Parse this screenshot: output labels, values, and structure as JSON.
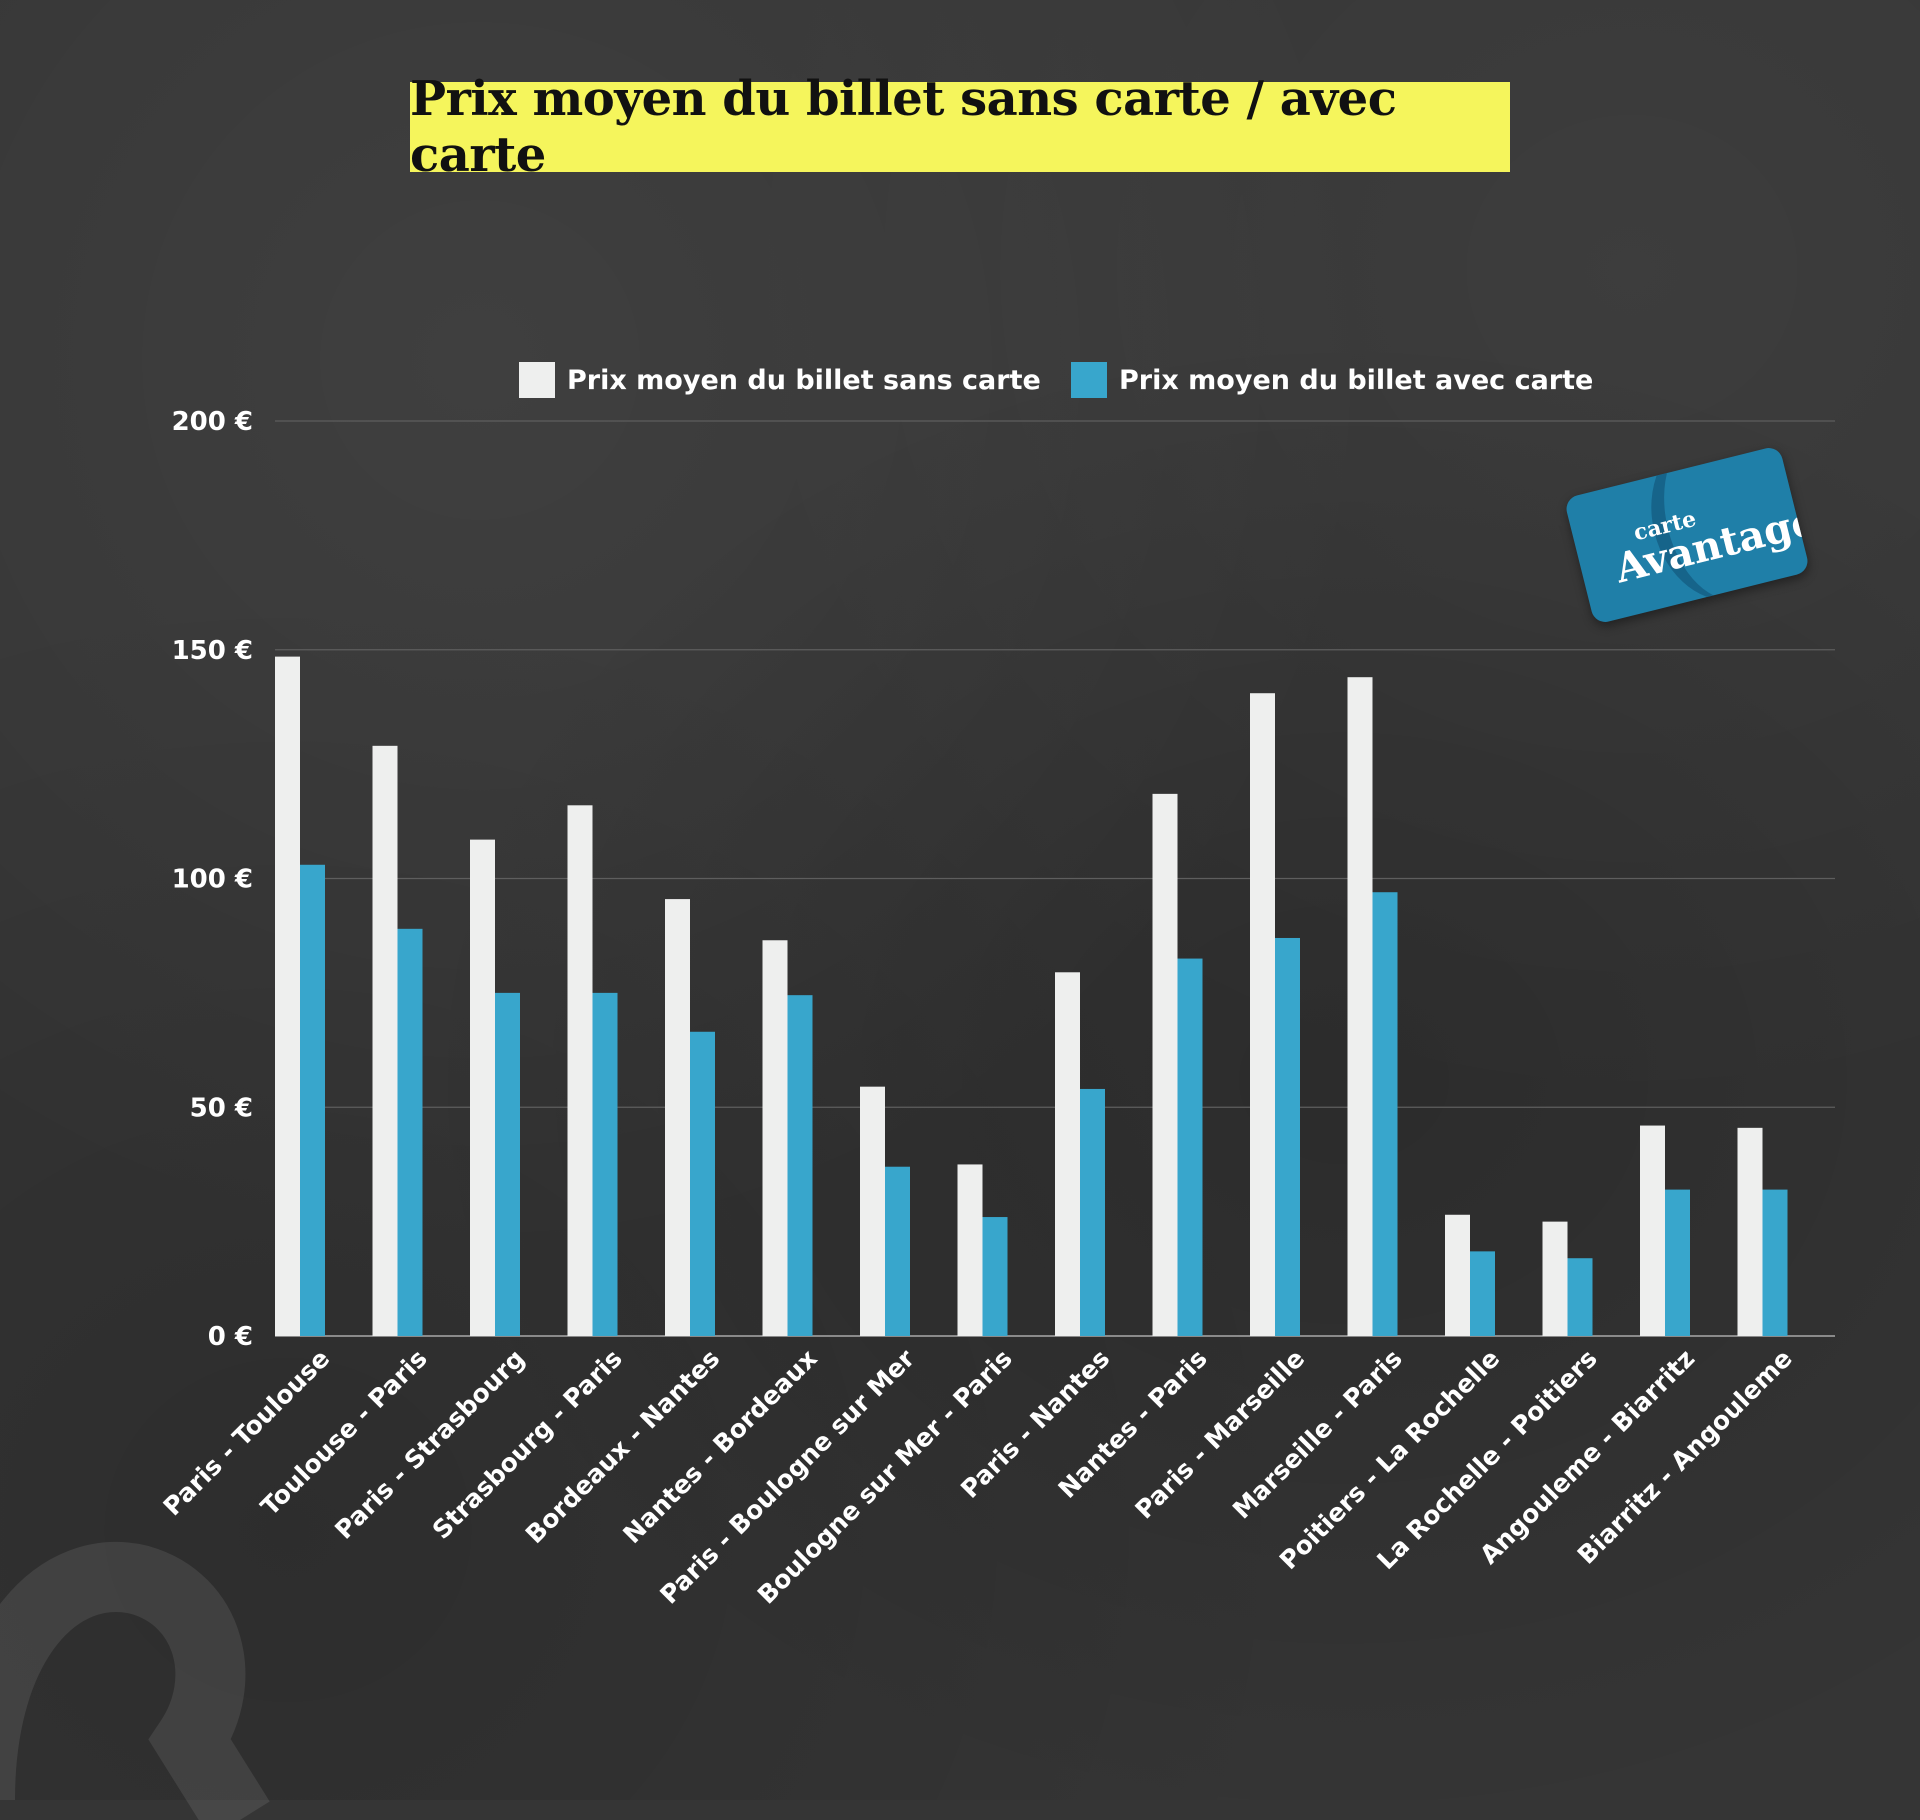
{
  "title": "Prix moyen du billet sans carte / avec carte",
  "badge": {
    "small": "carte",
    "big": "Avantage"
  },
  "colors": {
    "sans": "#eeefee",
    "avec": "#38a6cc",
    "title_bg": "#f5f55c",
    "background": "#353535"
  },
  "chart_data": {
    "type": "bar",
    "title": "Prix moyen du billet sans carte / avec carte",
    "xlabel": "",
    "ylabel": "",
    "ylim": [
      0,
      200
    ],
    "yticks": [
      0,
      50,
      100,
      150,
      200
    ],
    "ytick_labels": [
      "0 €",
      "50 €",
      "100 €",
      "150 €",
      "200 €"
    ],
    "grid": true,
    "legend_position": "top",
    "categories": [
      "Paris - Toulouse",
      "Toulouse - Paris",
      "Paris - Strasbourg",
      "Strasbourg - Paris",
      "Bordeaux - Nantes",
      "Nantes - Bordeaux",
      "Paris - Boulogne sur Mer",
      "Boulogne sur Mer - Paris",
      "Paris - Nantes",
      "Nantes - Paris",
      "Paris - Marseille",
      "Marseille - Paris",
      "Poitiers - La Rochelle",
      "La Rochelle - Poitiers",
      "Angouleme - Biarritz",
      "Biarritz - Angouleme"
    ],
    "series": [
      {
        "name": "Prix moyen du billet sans carte",
        "color": "#eeefee",
        "values": [
          148.5,
          129,
          108.5,
          116,
          95.5,
          86.5,
          54.5,
          37.5,
          79.5,
          118.5,
          140.5,
          144,
          26.5,
          25,
          46,
          45.5
        ]
      },
      {
        "name": "Prix moyen du billet avec carte",
        "color": "#38a6cc",
        "values": [
          103,
          89,
          75,
          75,
          66.5,
          74.5,
          37,
          26,
          54,
          82.5,
          87,
          97,
          18.5,
          17,
          32,
          32
        ]
      }
    ]
  }
}
